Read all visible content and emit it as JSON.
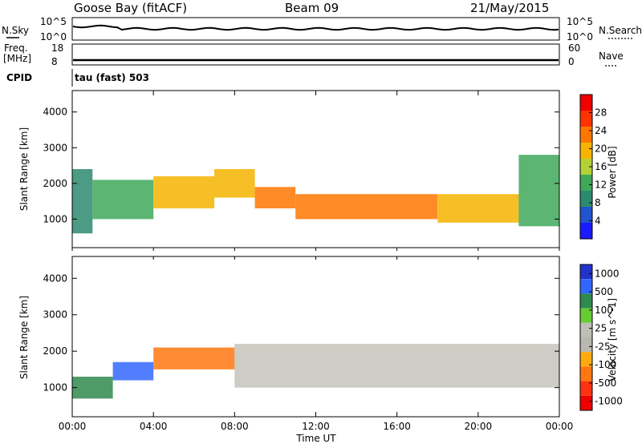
{
  "header": {
    "station": "Goose Bay (fitACF)",
    "beam": "Beam 09",
    "date": "21/May/2015"
  },
  "panels": {
    "nsky": {
      "left_label": "N.Sky",
      "left_ticks": [
        "10^5",
        "10^0"
      ],
      "right_label": "N.Search",
      "right_ticks": [
        "10^5",
        "10^0"
      ]
    },
    "freq": {
      "left_label_1": "Freq.",
      "left_label_2": "[MHz]",
      "left_ticks": [
        "18",
        "8"
      ],
      "right_label": "Nave",
      "right_ticks": [
        "60",
        "0"
      ]
    },
    "cpid": {
      "label": "CPID",
      "value": "tau (fast) 503"
    }
  },
  "colors": {
    "power": [
      "#1a1aff",
      "#2255cc",
      "#2d8a6e",
      "#3fa85a",
      "#b5d234",
      "#f6b400",
      "#ff7700",
      "#ff3300",
      "#ee0000"
    ],
    "velocity": [
      "#2233cc",
      "#3366ff",
      "#2f8a4e",
      "#66cc33",
      "#bfbfb8",
      "#b8b8b0",
      "#ffaa11",
      "#ff7711",
      "#ff3311",
      "#ee0000"
    ],
    "gray": "#c4c4bb"
  },
  "chart_data": [
    {
      "type": "heatmap",
      "name": "power",
      "ylabel": "Slant Range [km]",
      "xlabel": "",
      "xlim": [
        0,
        24
      ],
      "ylim": [
        200,
        4600
      ],
      "yticks": [
        1000,
        2000,
        3000,
        4000
      ],
      "colorbar_label": "Power [dB]",
      "colorbar_ticks": [
        "4",
        "8",
        "12",
        "16",
        "20",
        "24",
        "28"
      ],
      "colorbar_range": [
        0,
        32
      ],
      "bands": [
        {
          "x0": 0.0,
          "x1": 1.0,
          "y0": 600,
          "y1": 2400,
          "value": 10
        },
        {
          "x0": 1.0,
          "x1": 4.0,
          "y0": 1000,
          "y1": 2100,
          "value": 14
        },
        {
          "x0": 4.0,
          "x1": 7.0,
          "y0": 1300,
          "y1": 2200,
          "value": 18
        },
        {
          "x0": 7.0,
          "x1": 9.0,
          "y0": 1600,
          "y1": 2400,
          "value": 20
        },
        {
          "x0": 9.0,
          "x1": 11.0,
          "y0": 1300,
          "y1": 1900,
          "value": 22
        },
        {
          "x0": 11.0,
          "x1": 18.0,
          "y0": 1000,
          "y1": 1700,
          "value": 24
        },
        {
          "x0": 18.0,
          "x1": 22.0,
          "y0": 900,
          "y1": 1700,
          "value": 20
        },
        {
          "x0": 22.0,
          "x1": 24.0,
          "y0": 800,
          "y1": 2800,
          "value": 14
        }
      ]
    },
    {
      "type": "heatmap",
      "name": "velocity",
      "ylabel": "Slant Range [km]",
      "xlabel": "Time UT",
      "xlim": [
        0,
        24
      ],
      "ylim": [
        200,
        4600
      ],
      "yticks": [
        1000,
        2000,
        3000,
        4000
      ],
      "xticks": [
        "00:00",
        "04:00",
        "08:00",
        "12:00",
        "16:00",
        "20:00",
        "00:00"
      ],
      "colorbar_label": "Velocity [m s^-1]",
      "colorbar_ticks": [
        "1000",
        "500",
        "100",
        "25",
        "-25",
        "-100",
        "-500",
        "-1000"
      ],
      "bands": [
        {
          "x0": 0.0,
          "x1": 2.0,
          "y0": 700,
          "y1": 1300,
          "value": 100
        },
        {
          "x0": 2.0,
          "x1": 4.0,
          "y0": 1200,
          "y1": 1700,
          "value": 500
        },
        {
          "x0": 4.0,
          "x1": 8.0,
          "y0": 1500,
          "y1": 2100,
          "value": -100
        },
        {
          "x0": 8.0,
          "x1": 24.0,
          "y0": 1000,
          "y1": 2200,
          "value": 0
        }
      ]
    }
  ]
}
